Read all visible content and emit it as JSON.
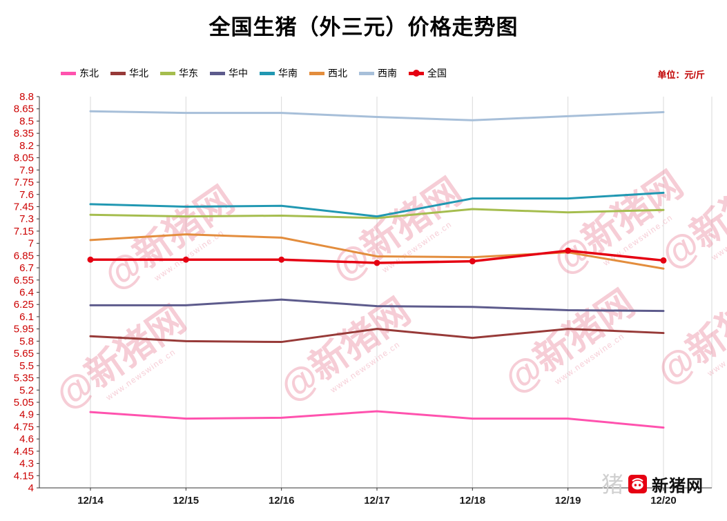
{
  "title": "全国生猪（外三元）价格走势图",
  "unit_label": "单位：元/斤",
  "watermark": {
    "text_main": "@新猪网",
    "text_sub": "www.newswine.cn"
  },
  "footer_logo": {
    "watermark_glyph": "猪",
    "text": "新猪网"
  },
  "chart_data": {
    "type": "line",
    "title": "全国生猪（外三元）价格走势图",
    "unit": "元/斤",
    "x": [
      "12/14",
      "12/15",
      "12/16",
      "12/17",
      "12/18",
      "12/19",
      "12/20"
    ],
    "ylim": [
      4,
      8.8
    ],
    "ytick_step": 0.15,
    "ytick_labels": [
      "4",
      "4.15",
      "4.3",
      "4.45",
      "4.6",
      "4.75",
      "4.9",
      "5.05",
      "5.2",
      "5.35",
      "5.5",
      "5.65",
      "5.8",
      "5.95",
      "6.1",
      "6.25",
      "6.4",
      "6.55",
      "6.7",
      "6.85",
      "7",
      "7.15",
      "7.3",
      "7.45",
      "7.6",
      "7.75",
      "7.9",
      "8.05",
      "8.2",
      "8.35",
      "8.5",
      "8.65",
      "8.8"
    ],
    "grid": "vertical",
    "legend_position": "top-left",
    "series": [
      {
        "name": "东北",
        "color": "#ff52ae",
        "marker": false,
        "values": [
          4.93,
          4.85,
          4.86,
          4.94,
          4.85,
          4.85,
          4.74
        ]
      },
      {
        "name": "华北",
        "color": "#973a38",
        "marker": false,
        "values": [
          5.86,
          5.8,
          5.79,
          5.95,
          5.84,
          5.95,
          5.9
        ]
      },
      {
        "name": "华东",
        "color": "#a5bd4e",
        "marker": false,
        "values": [
          7.35,
          7.33,
          7.34,
          7.31,
          7.42,
          7.38,
          7.41
        ]
      },
      {
        "name": "华中",
        "color": "#5d5b8c",
        "marker": false,
        "values": [
          6.24,
          6.24,
          6.31,
          6.23,
          6.22,
          6.18,
          6.17
        ]
      },
      {
        "name": "华南",
        "color": "#2198b2",
        "marker": false,
        "values": [
          7.48,
          7.45,
          7.46,
          7.33,
          7.55,
          7.55,
          7.62
        ]
      },
      {
        "name": "西北",
        "color": "#e38d3d",
        "marker": false,
        "values": [
          7.04,
          7.11,
          7.07,
          6.84,
          6.83,
          6.89,
          6.69
        ]
      },
      {
        "name": "西南",
        "color": "#a7bfd9",
        "marker": false,
        "values": [
          8.62,
          8.6,
          8.6,
          8.55,
          8.51,
          8.56,
          8.61
        ]
      },
      {
        "name": "全国",
        "color": "#e50012",
        "marker": true,
        "values": [
          6.8,
          6.8,
          6.8,
          6.76,
          6.78,
          6.91,
          6.79
        ]
      }
    ]
  }
}
